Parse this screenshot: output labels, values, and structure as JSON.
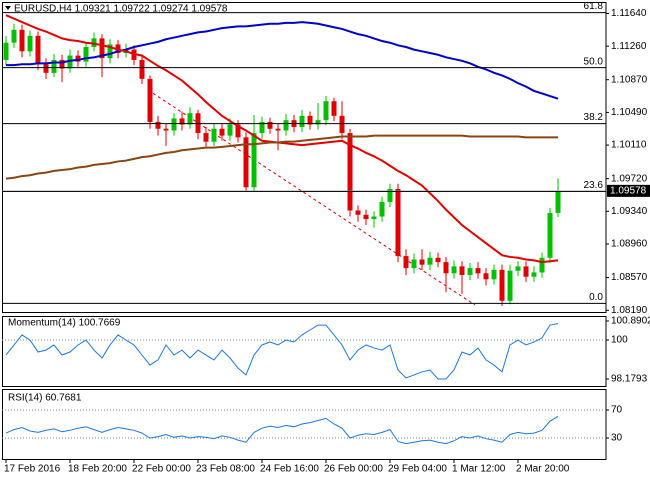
{
  "chart_data": [
    {
      "type": "candlestick",
      "title": "EURUSD,H4  1.09321 1.09722 1.09274 1.09578",
      "categories": [
        "17 Feb 2016",
        null,
        null,
        null,
        null,
        null,
        null,
        null,
        "18 Feb 20:00",
        null,
        null,
        null,
        null,
        null,
        null,
        null,
        "22 Feb 00:00",
        null,
        null,
        null,
        null,
        null,
        null,
        null,
        "23 Feb 08:00",
        null,
        null,
        null,
        null,
        null,
        null,
        null,
        "24 Feb 16:00",
        null,
        null,
        null,
        null,
        null,
        null,
        null,
        "26 Feb 00:00",
        null,
        null,
        null,
        null,
        null,
        null,
        null,
        "29 Feb 04:00",
        null,
        null,
        null,
        null,
        null,
        null,
        null,
        "1 Mar 12:00",
        null,
        null,
        null,
        null,
        null,
        null,
        null,
        "2 Mar 20:00",
        null,
        null,
        null,
        null,
        null
      ],
      "open": [
        1.111,
        1.113,
        1.1145,
        1.112,
        1.1138,
        1.1105,
        1.1095,
        1.111,
        1.11,
        1.1115,
        1.1108,
        1.1125,
        1.1135,
        1.1112,
        1.1128,
        1.1118,
        1.1122,
        1.111,
        1.1088,
        1.1038,
        1.103,
        1.1028,
        1.1042,
        1.1035,
        1.1048,
        1.1025,
        1.1015,
        1.103,
        1.1022,
        1.1035,
        1.102,
        1.0962,
        1.1025,
        1.1038,
        1.103,
        1.1028,
        1.104,
        1.1032,
        1.1045,
        1.1035,
        1.104,
        1.1062,
        1.1045,
        1.1025,
        1.0935,
        1.093,
        1.0925,
        1.0928,
        1.0945,
        1.096,
        1.0882,
        1.0868,
        1.0878,
        1.0872,
        1.088,
        1.0875,
        1.0862,
        1.087,
        1.086,
        1.0868,
        1.0862,
        1.0855,
        1.0866,
        1.083,
        1.0865,
        1.087,
        1.0858,
        1.0863,
        1.088,
        1.09321
      ],
      "high": [
        1.1138,
        1.1152,
        1.1151,
        1.1144,
        1.1143,
        1.1112,
        1.1117,
        1.1116,
        1.1122,
        1.1121,
        1.1131,
        1.1142,
        1.114,
        1.1134,
        1.1133,
        1.1129,
        1.1127,
        1.1115,
        1.1092,
        1.1045,
        1.1036,
        1.1048,
        1.105,
        1.1055,
        1.1052,
        1.1032,
        1.1037,
        1.1036,
        1.1042,
        1.104,
        1.1026,
        1.1046,
        1.1044,
        1.1043,
        1.1036,
        1.1047,
        1.1046,
        1.1052,
        1.105,
        1.106,
        1.1068,
        1.1066,
        1.1062,
        1.103,
        1.0941,
        1.0936,
        1.0934,
        1.0951,
        1.0966,
        1.0966,
        1.089,
        1.0885,
        1.089,
        1.0887,
        1.0886,
        1.0881,
        1.0877,
        1.0876,
        1.0874,
        1.0875,
        1.0868,
        1.0872,
        1.0872,
        1.0872,
        1.0876,
        1.0876,
        1.087,
        1.0886,
        1.0938,
        1.09722
      ],
      "low": [
        1.1104,
        1.1124,
        1.1113,
        1.1114,
        1.1098,
        1.1088,
        1.109,
        1.1084,
        1.1095,
        1.1102,
        1.1102,
        1.112,
        1.109,
        1.1106,
        1.1112,
        1.1113,
        1.1104,
        1.1082,
        1.103,
        1.1022,
        1.101,
        1.1022,
        1.1028,
        1.103,
        1.1018,
        1.1008,
        1.101,
        1.1016,
        1.1016,
        1.1014,
        1.0958,
        1.0958,
        1.1018,
        1.1024,
        1.1005,
        1.1022,
        1.1026,
        1.1026,
        1.1029,
        1.1029,
        1.1034,
        1.1039,
        1.1018,
        1.0928,
        1.0922,
        1.0918,
        1.0915,
        1.0922,
        1.0939,
        1.0875,
        1.086,
        1.0862,
        1.0866,
        1.0866,
        1.0869,
        1.084,
        1.0856,
        1.0838,
        1.0854,
        1.0856,
        1.0848,
        1.0849,
        1.0824,
        1.0826,
        1.0859,
        1.0852,
        1.0852,
        1.0857,
        1.0874,
        1.09274
      ],
      "close": [
        1.113,
        1.1145,
        1.112,
        1.1138,
        1.1105,
        1.1095,
        1.111,
        1.11,
        1.1115,
        1.1108,
        1.1125,
        1.1135,
        1.1112,
        1.1128,
        1.1118,
        1.1122,
        1.111,
        1.1088,
        1.1038,
        1.103,
        1.1028,
        1.1042,
        1.1035,
        1.1048,
        1.1025,
        1.1015,
        1.103,
        1.1022,
        1.1035,
        1.102,
        1.0962,
        1.1025,
        1.1038,
        1.103,
        1.1028,
        1.104,
        1.1032,
        1.1045,
        1.1035,
        1.104,
        1.1062,
        1.1045,
        1.1025,
        1.0935,
        1.093,
        1.0925,
        1.0928,
        1.0945,
        1.096,
        1.0882,
        1.0868,
        1.0878,
        1.0872,
        1.088,
        1.0875,
        1.0862,
        1.087,
        1.086,
        1.0868,
        1.0862,
        1.0855,
        1.0866,
        1.083,
        1.0865,
        1.087,
        1.0858,
        1.0863,
        1.088,
        1.09321,
        1.09578
      ],
      "up_color": "#00c000",
      "down_color": "#e00000",
      "series": [
        {
          "color": "#0000c8",
          "values": [
            1.1104,
            1.1104,
            1.1105,
            1.1105,
            1.1106,
            1.1106,
            1.1107,
            1.1107,
            1.1109,
            1.111,
            1.1112,
            1.1113,
            1.1115,
            1.1117,
            1.112,
            1.1122,
            1.1125,
            1.1127,
            1.1129,
            1.1131,
            1.1134,
            1.1136,
            1.1138,
            1.114,
            1.1142,
            1.1143,
            1.1145,
            1.1147,
            1.1148,
            1.1149,
            1.1149,
            1.115,
            1.1151,
            1.1152,
            1.1152,
            1.1153,
            1.1153,
            1.1154,
            1.1153,
            1.1152,
            1.115,
            1.1148,
            1.1146,
            1.1143,
            1.114,
            1.1138,
            1.1135,
            1.1132,
            1.113,
            1.1127,
            1.1125,
            1.1122,
            1.112,
            1.1118,
            1.1116,
            1.1113,
            1.1111,
            1.1109,
            1.1106,
            1.1102,
            1.1099,
            1.1095,
            1.1092,
            1.1088,
            1.1083,
            1.1079,
            1.1074,
            1.1071,
            1.1068,
            1.1065
          ]
        },
        {
          "color": "#e00000",
          "values": [
            1.1162,
            1.1158,
            1.1154,
            1.115,
            1.1146,
            1.1143,
            1.1139,
            1.1135,
            1.1133,
            1.1132,
            1.113,
            1.1129,
            1.1127,
            1.1125,
            1.1122,
            1.112,
            1.1117,
            1.1115,
            1.1109,
            1.1103,
            1.1098,
            1.1092,
            1.1086,
            1.1078,
            1.107,
            1.1061,
            1.1053,
            1.1045,
            1.1039,
            1.1033,
            1.1028,
            1.1022,
            1.1016,
            1.1015,
            1.1014,
            1.1013,
            1.1012,
            1.1011,
            1.1012,
            1.1013,
            1.1014,
            1.1015,
            1.1016,
            1.1011,
            1.1007,
            1.1002,
            1.0998,
            1.0993,
            1.0987,
            1.0981,
            1.0976,
            1.097,
            1.0964,
            1.0955,
            1.0946,
            1.0936,
            1.0927,
            1.0918,
            1.0911,
            1.0904,
            1.0897,
            1.089,
            1.0883,
            1.0881,
            1.088,
            1.0878,
            1.0877,
            1.0875,
            1.0876,
            1.0877
          ]
        },
        {
          "color": "#8b4513",
          "values": [
            1.0972,
            1.0973,
            1.0975,
            1.0976,
            1.0978,
            1.0979,
            1.0981,
            1.0982,
            1.0983,
            1.0985,
            1.0986,
            1.0988,
            1.0989,
            1.099,
            1.0992,
            1.0993,
            1.0995,
            1.0997,
            1.0998,
            1.1,
            1.1002,
            1.1003,
            1.1005,
            1.1006,
            1.1007,
            1.1008,
            1.1008,
            1.1009,
            1.101,
            1.1011,
            1.1012,
            1.1012,
            1.1013,
            1.1014,
            1.1014,
            1.1015,
            1.1015,
            1.1016,
            1.1017,
            1.1018,
            1.1019,
            1.102,
            1.1021,
            1.1021,
            1.1021,
            1.1021,
            1.1022,
            1.1022,
            1.1022,
            1.1022,
            1.1022,
            1.1022,
            1.1022,
            1.1022,
            1.1022,
            1.1022,
            1.1022,
            1.1022,
            1.1021,
            1.1021,
            1.1021,
            1.1021,
            1.1021,
            1.1021,
            1.1021,
            1.102,
            1.102,
            1.102,
            1.102,
            1.102
          ]
        }
      ],
      "levels": [
        {
          "label": "61.8",
          "value": 1.1165
        },
        {
          "label": "50.0",
          "value": 1.1101
        },
        {
          "label": "38.2",
          "value": 1.1036
        },
        {
          "label": "23.6",
          "value": 1.0957
        },
        {
          "label": "0.0",
          "value": 1.0827
        }
      ],
      "ylim": [
        1.0817,
        1.1175
      ],
      "yticks": [
        {
          "value": 1.0819,
          "label": "1.08190"
        },
        {
          "value": 1.0857,
          "label": "1.08570"
        },
        {
          "value": 1.0896,
          "label": "1.08960"
        },
        {
          "value": 1.0934,
          "label": "1.09340"
        },
        {
          "value": 1.0972,
          "label": "1.09720"
        },
        {
          "value": 1.1011,
          "label": "1.10110"
        },
        {
          "value": 1.1049,
          "label": "1.10490"
        },
        {
          "value": 1.1087,
          "label": "1.10870"
        },
        {
          "value": 1.1126,
          "label": "1.11260"
        },
        {
          "value": 1.1164,
          "label": "1.11640"
        }
      ],
      "grid": false
    },
    {
      "type": "line",
      "title": "Momentum(14) 100.7669",
      "color": "#1e78dc",
      "values": [
        99.3,
        99.77,
        100.24,
        100.0,
        99.44,
        99.53,
        99.77,
        99.3,
        99.44,
        99.77,
        100.0,
        99.53,
        99.16,
        99.77,
        100.24,
        100.0,
        99.77,
        99.3,
        98.83,
        99.07,
        99.77,
        99.3,
        99.53,
        99.16,
        99.53,
        99.3,
        99.07,
        99.53,
        99.16,
        98.69,
        98.37,
        99.3,
        99.77,
        99.91,
        99.77,
        100.0,
        99.91,
        100.24,
        100.47,
        100.7,
        100.7,
        100.24,
        99.77,
        99.07,
        99.53,
        99.77,
        99.63,
        99.53,
        99.77,
        98.6,
        98.23,
        98.37,
        98.51,
        98.6,
        98.18,
        98.18,
        98.6,
        99.44,
        99.3,
        99.63,
        99.07,
        98.83,
        98.51,
        99.77,
        100.0,
        99.77,
        99.91,
        100.1,
        100.7,
        100.7669
      ],
      "ylim": [
        98.1793,
        100.8902
      ],
      "yticks": [
        98.1793,
        100,
        100.8902
      ],
      "grid": true
    },
    {
      "type": "line",
      "title": "RSI(14) 60.7681",
      "color": "#1e78dc",
      "values": [
        37,
        42,
        45,
        40,
        38,
        41,
        43,
        39,
        41,
        44,
        46,
        42,
        38,
        42,
        45,
        43,
        41,
        37,
        30,
        32,
        35,
        31,
        33,
        30,
        32,
        31,
        29,
        33,
        31,
        27,
        24,
        38,
        44,
        47,
        45,
        48,
        46,
        50,
        52,
        55,
        58,
        50,
        44,
        30,
        34,
        36,
        35,
        38,
        42,
        25,
        22,
        24,
        26,
        27,
        24,
        22,
        26,
        32,
        30,
        33,
        29,
        27,
        24,
        35,
        38,
        36,
        37,
        41,
        54,
        60.7681
      ],
      "ylim": [
        0,
        100
      ],
      "yticks": [
        30,
        70
      ],
      "grid": true
    }
  ]
}
